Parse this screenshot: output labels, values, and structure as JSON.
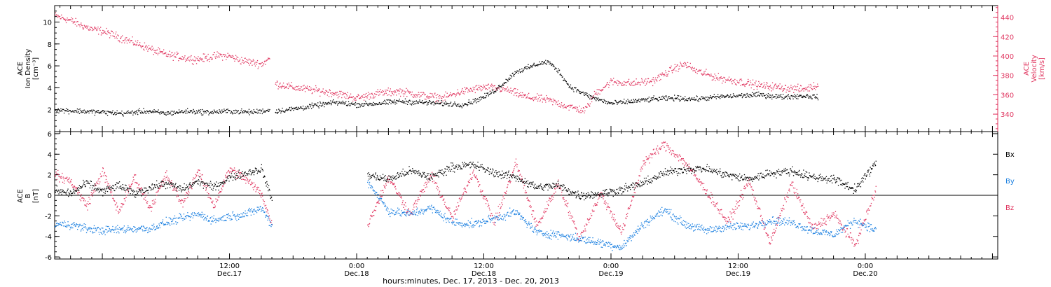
{
  "colors": {
    "axis": "#000000",
    "density": "#000000",
    "velocity": "#e0355f",
    "bx": "#000000",
    "by": "#1a7fe0",
    "bz": "#e0355f"
  },
  "xaxis": {
    "label": "hours:minutes, Dec. 17, 2013 - Dec. 20, 2013",
    "range_hours": [
      -4.5,
      84.5
    ],
    "major_ticks": [
      {
        "h": 12,
        "time": "12:00",
        "date": "Dec.17"
      },
      {
        "h": 24,
        "time": "0:00",
        "date": "Dec.18"
      },
      {
        "h": 36,
        "time": "12:00",
        "date": "Dec.18"
      },
      {
        "h": 48,
        "time": "0:00",
        "date": "Dec.19"
      },
      {
        "h": 60,
        "time": "12:00",
        "date": "Dec.19"
      },
      {
        "h": 72,
        "time": "0:00",
        "date": "Dec.20"
      }
    ]
  },
  "chart_data": [
    {
      "type": "scatter",
      "panel": "top",
      "ylabel_left": [
        "ACE",
        "Ion Density",
        "[cm⁻³]"
      ],
      "ylabel_right": [
        "ACE",
        "Velocity",
        "[km/s]"
      ],
      "ylim_left": [
        0,
        11.5
      ],
      "left_ticks": [
        "2",
        "4",
        "6",
        "8",
        "10"
      ],
      "ylim_right": [
        322,
        452
      ],
      "right_ticks": [
        "340",
        "360",
        "380",
        "400",
        "420",
        "440"
      ],
      "series": [
        {
          "key": "density",
          "axis": "left",
          "segments": [
            {
              "x": [
                -4.5,
                -2,
                0,
                2,
                4,
                6,
                8,
                10,
                12,
                14,
                15.8
              ],
              "y": [
                2.0,
                1.9,
                1.8,
                1.7,
                1.9,
                1.7,
                1.9,
                1.8,
                1.9,
                1.8,
                2.0
              ]
            },
            {
              "x": [
                16.3,
                18,
                20,
                22,
                24,
                26,
                28,
                30,
                32,
                34,
                35,
                36,
                37,
                38,
                39,
                40,
                41,
                42,
                43,
                44,
                46,
                48,
                50,
                52,
                54,
                56,
                58,
                60,
                62,
                64,
                66,
                67.5
              ],
              "y": [
                1.9,
                2.1,
                2.4,
                2.7,
                2.5,
                2.6,
                2.8,
                2.7,
                2.6,
                2.5,
                2.8,
                3.2,
                3.8,
                4.6,
                5.5,
                5.8,
                6.2,
                6.4,
                5.6,
                4.2,
                3.2,
                2.6,
                2.8,
                3.0,
                3.1,
                3.0,
                3.2,
                3.3,
                3.4,
                3.2,
                3.3,
                3.2
              ]
            }
          ]
        },
        {
          "key": "velocity",
          "axis": "right",
          "segments": [
            {
              "x": [
                -4.5,
                -3,
                -2,
                -1,
                0,
                1,
                2,
                3,
                4,
                5,
                6,
                7,
                8,
                9,
                10,
                11,
                12,
                13,
                14,
                15,
                15.8
              ],
              "y": [
                442,
                437,
                432,
                428,
                426,
                422,
                418,
                414,
                410,
                405,
                402,
                400,
                398,
                397,
                399,
                401,
                400,
                396,
                394,
                392,
                398
              ]
            },
            {
              "x": [
                16.3,
                18,
                20,
                22,
                24,
                26,
                28,
                30,
                32,
                34,
                36,
                38,
                40,
                42,
                44,
                45.5,
                46.5,
                48,
                50,
                52,
                54,
                55,
                56,
                58,
                60,
                62,
                64,
                66,
                67.5
              ],
              "y": [
                372,
                368,
                365,
                362,
                357,
                362,
                364,
                360,
                357,
                364,
                368,
                366,
                358,
                355,
                348,
                344,
                362,
                374,
                372,
                375,
                388,
                392,
                385,
                378,
                374,
                370,
                368,
                366,
                370
              ]
            }
          ]
        }
      ]
    },
    {
      "type": "scatter",
      "panel": "bottom",
      "ylabel_left": [
        "ACE",
        "B",
        "[nT]"
      ],
      "ylim": [
        -6.2,
        6.2
      ],
      "left_ticks": [
        "-6",
        "-4",
        "-2",
        "0",
        "2",
        "4",
        "6"
      ],
      "legend": [
        "Bx",
        "By",
        "Bz"
      ],
      "series": [
        {
          "key": "bx",
          "name": "Bx",
          "segments": [
            {
              "x": [
                -4.5,
                -3,
                -1.5,
                0,
                1.5,
                3,
                4.5,
                6,
                7.5,
                9,
                10.5,
                12,
                13.5,
                15,
                16
              ],
              "y": [
                0.5,
                0.2,
                1.2,
                0.4,
                1.0,
                0.2,
                0.8,
                1.2,
                0.6,
                1.4,
                0.8,
                1.8,
                2.2,
                2.6,
                -0.5
              ]
            },
            {
              "x": [
                25,
                27,
                29,
                31,
                33,
                35,
                37,
                39,
                41,
                43,
                45,
                47,
                49,
                51,
                53,
                55,
                57,
                59,
                61,
                63,
                65,
                67,
                69,
                71,
                73
              ],
              "y": [
                2.0,
                1.6,
                2.4,
                1.8,
                2.8,
                3.0,
                2.2,
                1.8,
                0.8,
                1.0,
                0.0,
                0.2,
                0.6,
                1.2,
                2.2,
                2.6,
                2.6,
                2.0,
                1.6,
                2.2,
                2.4,
                1.8,
                1.6,
                0.6,
                3.2
              ]
            }
          ]
        },
        {
          "key": "by",
          "name": "By",
          "segments": [
            {
              "x": [
                -4.5,
                -3,
                -1.5,
                0,
                1.5,
                3,
                4.5,
                6,
                7.5,
                9,
                10.5,
                12,
                13.5,
                15,
                16
              ],
              "y": [
                -2.8,
                -2.8,
                -3.2,
                -3.4,
                -3.3,
                -3.2,
                -3.2,
                -2.6,
                -2.2,
                -1.8,
                -2.4,
                -2.0,
                -1.8,
                -1.2,
                -3.0
              ]
            },
            {
              "x": [
                25,
                27,
                29,
                31,
                33,
                35,
                37,
                39,
                41,
                43,
                45,
                47,
                49,
                51,
                53,
                55,
                57,
                59,
                61,
                63,
                65,
                67,
                69,
                71,
                73
              ],
              "y": [
                1.4,
                -1.5,
                -1.8,
                -1.2,
                -2.6,
                -2.8,
                -2.2,
                -1.6,
                -3.6,
                -3.8,
                -4.2,
                -4.6,
                -5.0,
                -2.8,
                -1.4,
                -2.8,
                -3.4,
                -3.0,
                -3.0,
                -2.4,
                -2.6,
                -3.4,
                -3.8,
                -2.4,
                -3.4
              ]
            }
          ]
        },
        {
          "key": "bz",
          "name": "Bz",
          "segments": [
            {
              "x": [
                -4.5,
                -3,
                -1.5,
                0,
                1.5,
                3,
                4.5,
                6,
                7.5,
                9,
                10.5,
                12,
                13.5,
                15,
                16
              ],
              "y": [
                2.0,
                1.4,
                -1.0,
                2.4,
                -1.6,
                1.8,
                -1.2,
                2.0,
                -0.8,
                2.4,
                -1.0,
                2.6,
                1.6,
                0.2,
                -3.0
              ]
            },
            {
              "x": [
                25,
                27,
                29,
                31,
                33,
                35,
                37,
                39,
                41,
                43,
                45,
                47,
                49,
                51,
                53,
                55,
                57,
                59,
                61,
                63,
                65,
                67,
                69,
                71,
                73
              ],
              "y": [
                -2.8,
                1.8,
                -1.8,
                2.0,
                -2.2,
                2.4,
                -2.6,
                3.2,
                -3.0,
                1.2,
                -4.2,
                0.2,
                -3.6,
                3.2,
                5.0,
                3.2,
                0.4,
                -2.6,
                1.4,
                -4.6,
                1.2,
                -3.2,
                -1.8,
                -4.8,
                0.6
              ]
            }
          ]
        }
      ]
    }
  ]
}
